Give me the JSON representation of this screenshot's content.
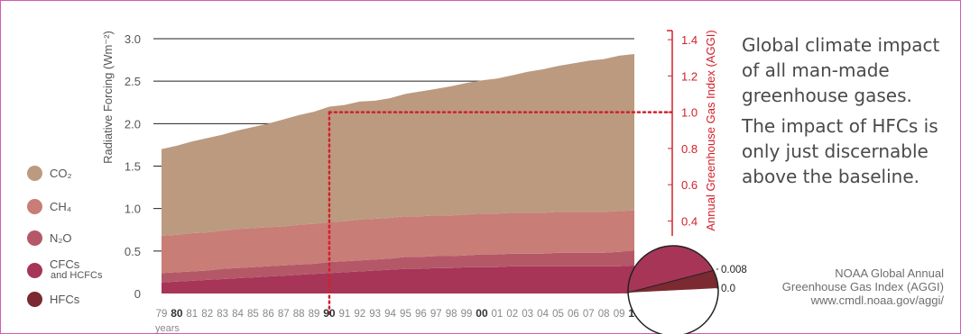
{
  "headline": {
    "line1": "Global climate impact of all man-made greenhouse gases.",
    "line2": "The impact of HFCs is only just discernable above the baseline."
  },
  "source": {
    "line1": "NOAA Global Annual",
    "line2": "Greenhouse Gas Index (AGGI)",
    "line3": "www.cmdl.noaa.gov/aggi/"
  },
  "legend": [
    {
      "label": "CO₂",
      "color": "#bc9a80"
    },
    {
      "label": "CH₄",
      "color": "#c87d77"
    },
    {
      "label": "N₂O",
      "color": "#b45868"
    },
    {
      "label": "CFCs",
      "sublabel": "and HCFCs",
      "color": "#a73558"
    },
    {
      "label": "HFCs",
      "color": "#7a2a30"
    }
  ],
  "chart_data": {
    "type": "area",
    "stacked": true,
    "x": [
      "79",
      "80",
      "81",
      "82",
      "83",
      "84",
      "85",
      "86",
      "87",
      "88",
      "89",
      "90",
      "91",
      "92",
      "93",
      "94",
      "95",
      "96",
      "97",
      "98",
      "99",
      "00",
      "01",
      "02",
      "03",
      "04",
      "05",
      "06",
      "07",
      "08",
      "09",
      "10"
    ],
    "x_bold": [
      "80",
      "90",
      "00",
      "10"
    ],
    "xlabel": "years",
    "ylabel": "Radiative Forcing (Wm⁻²)",
    "y_ticks": [
      "0",
      "0.5",
      "1.0",
      "1.5",
      "2.0",
      "2.5",
      "3.0"
    ],
    "ylim": [
      0,
      3.0
    ],
    "y2label": "Annual Greenhouse Gas Index (AGGI)",
    "y2_ticks": [
      "0.4",
      "0.6",
      "0.8",
      "1.0",
      "1.2",
      "1.4"
    ],
    "y2lim": [
      0,
      1.45
    ],
    "reference": {
      "x": "90",
      "aggi": 1.0
    },
    "series": [
      {
        "name": "HFCs",
        "color": "#7a2a30",
        "values": [
          0,
          0,
          0,
          0,
          0,
          0,
          0,
          0,
          0,
          0,
          0,
          0,
          0,
          0,
          0,
          0,
          0,
          0,
          0,
          0,
          0,
          0,
          0,
          0,
          0,
          0,
          0,
          0,
          0,
          0,
          0,
          0.01
        ]
      },
      {
        "name": "CFCs and HCFCs",
        "color": "#a73558",
        "values": [
          0.13,
          0.14,
          0.15,
          0.16,
          0.17,
          0.18,
          0.19,
          0.2,
          0.21,
          0.22,
          0.23,
          0.24,
          0.25,
          0.26,
          0.27,
          0.28,
          0.29,
          0.29,
          0.3,
          0.3,
          0.31,
          0.31,
          0.31,
          0.32,
          0.32,
          0.32,
          0.32,
          0.32,
          0.32,
          0.32,
          0.32,
          0.32
        ]
      },
      {
        "name": "N₂O",
        "color": "#b45868",
        "values": [
          0.11,
          0.11,
          0.11,
          0.11,
          0.12,
          0.12,
          0.12,
          0.12,
          0.12,
          0.12,
          0.12,
          0.13,
          0.13,
          0.13,
          0.13,
          0.13,
          0.14,
          0.14,
          0.14,
          0.14,
          0.14,
          0.15,
          0.15,
          0.15,
          0.15,
          0.15,
          0.16,
          0.16,
          0.16,
          0.16,
          0.17,
          0.17
        ]
      },
      {
        "name": "CH₄",
        "color": "#c87d77",
        "values": [
          0.44,
          0.44,
          0.45,
          0.45,
          0.45,
          0.46,
          0.46,
          0.46,
          0.46,
          0.47,
          0.47,
          0.47,
          0.47,
          0.48,
          0.48,
          0.48,
          0.48,
          0.48,
          0.48,
          0.48,
          0.48,
          0.48,
          0.48,
          0.48,
          0.48,
          0.48,
          0.48,
          0.48,
          0.48,
          0.48,
          0.48,
          0.48
        ]
      },
      {
        "name": "CO₂",
        "color": "#bc9a80",
        "values": [
          1.02,
          1.05,
          1.08,
          1.11,
          1.13,
          1.16,
          1.19,
          1.22,
          1.26,
          1.29,
          1.32,
          1.36,
          1.37,
          1.39,
          1.39,
          1.41,
          1.44,
          1.47,
          1.49,
          1.52,
          1.55,
          1.57,
          1.59,
          1.62,
          1.66,
          1.69,
          1.72,
          1.75,
          1.78,
          1.8,
          1.83,
          1.84
        ]
      }
    ],
    "inset": {
      "tick_labels": [
        "0.008",
        "0.0"
      ],
      "color_top": "#a73558",
      "color_bottom": "#7a2a30"
    }
  }
}
